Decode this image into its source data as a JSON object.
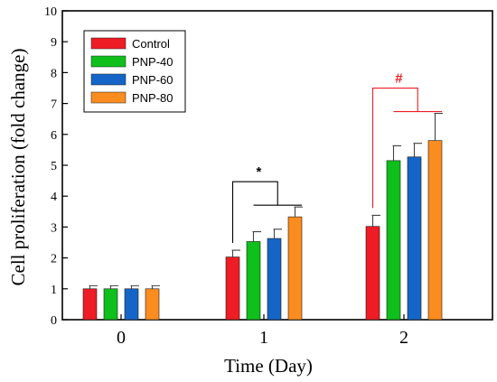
{
  "chart_data": {
    "type": "bar",
    "xlabel": "Time (Day)",
    "ylabel": "Cell proliferation (fold change)",
    "categories": [
      "0",
      "1",
      "2"
    ],
    "ylim": [
      0,
      10
    ],
    "yticks": [
      "0",
      "1",
      "2",
      "3",
      "4",
      "5",
      "6",
      "7",
      "8",
      "9",
      "10"
    ],
    "legend_position": "top-left",
    "series": [
      {
        "name": "Control",
        "color": "#ee1c24",
        "values": [
          1.0,
          2.03,
          3.02
        ],
        "errors": [
          0.1,
          0.22,
          0.36
        ]
      },
      {
        "name": "PNP-40",
        "color": "#0fbf1b",
        "values": [
          1.0,
          2.53,
          5.15
        ],
        "errors": [
          0.1,
          0.32,
          0.48
        ]
      },
      {
        "name": "PNP-60",
        "color": "#1565c8",
        "values": [
          1.0,
          2.63,
          5.27
        ],
        "errors": [
          0.1,
          0.3,
          0.44
        ]
      },
      {
        "name": "PNP-80",
        "color": "#fb8c1f",
        "values": [
          1.0,
          3.33,
          5.8
        ],
        "errors": [
          0.1,
          0.32,
          0.88
        ]
      }
    ],
    "annotations": [
      {
        "text": "*",
        "category": "1",
        "color": "#000000"
      },
      {
        "text": "#",
        "category": "2",
        "color": "#ee1c24"
      }
    ]
  }
}
